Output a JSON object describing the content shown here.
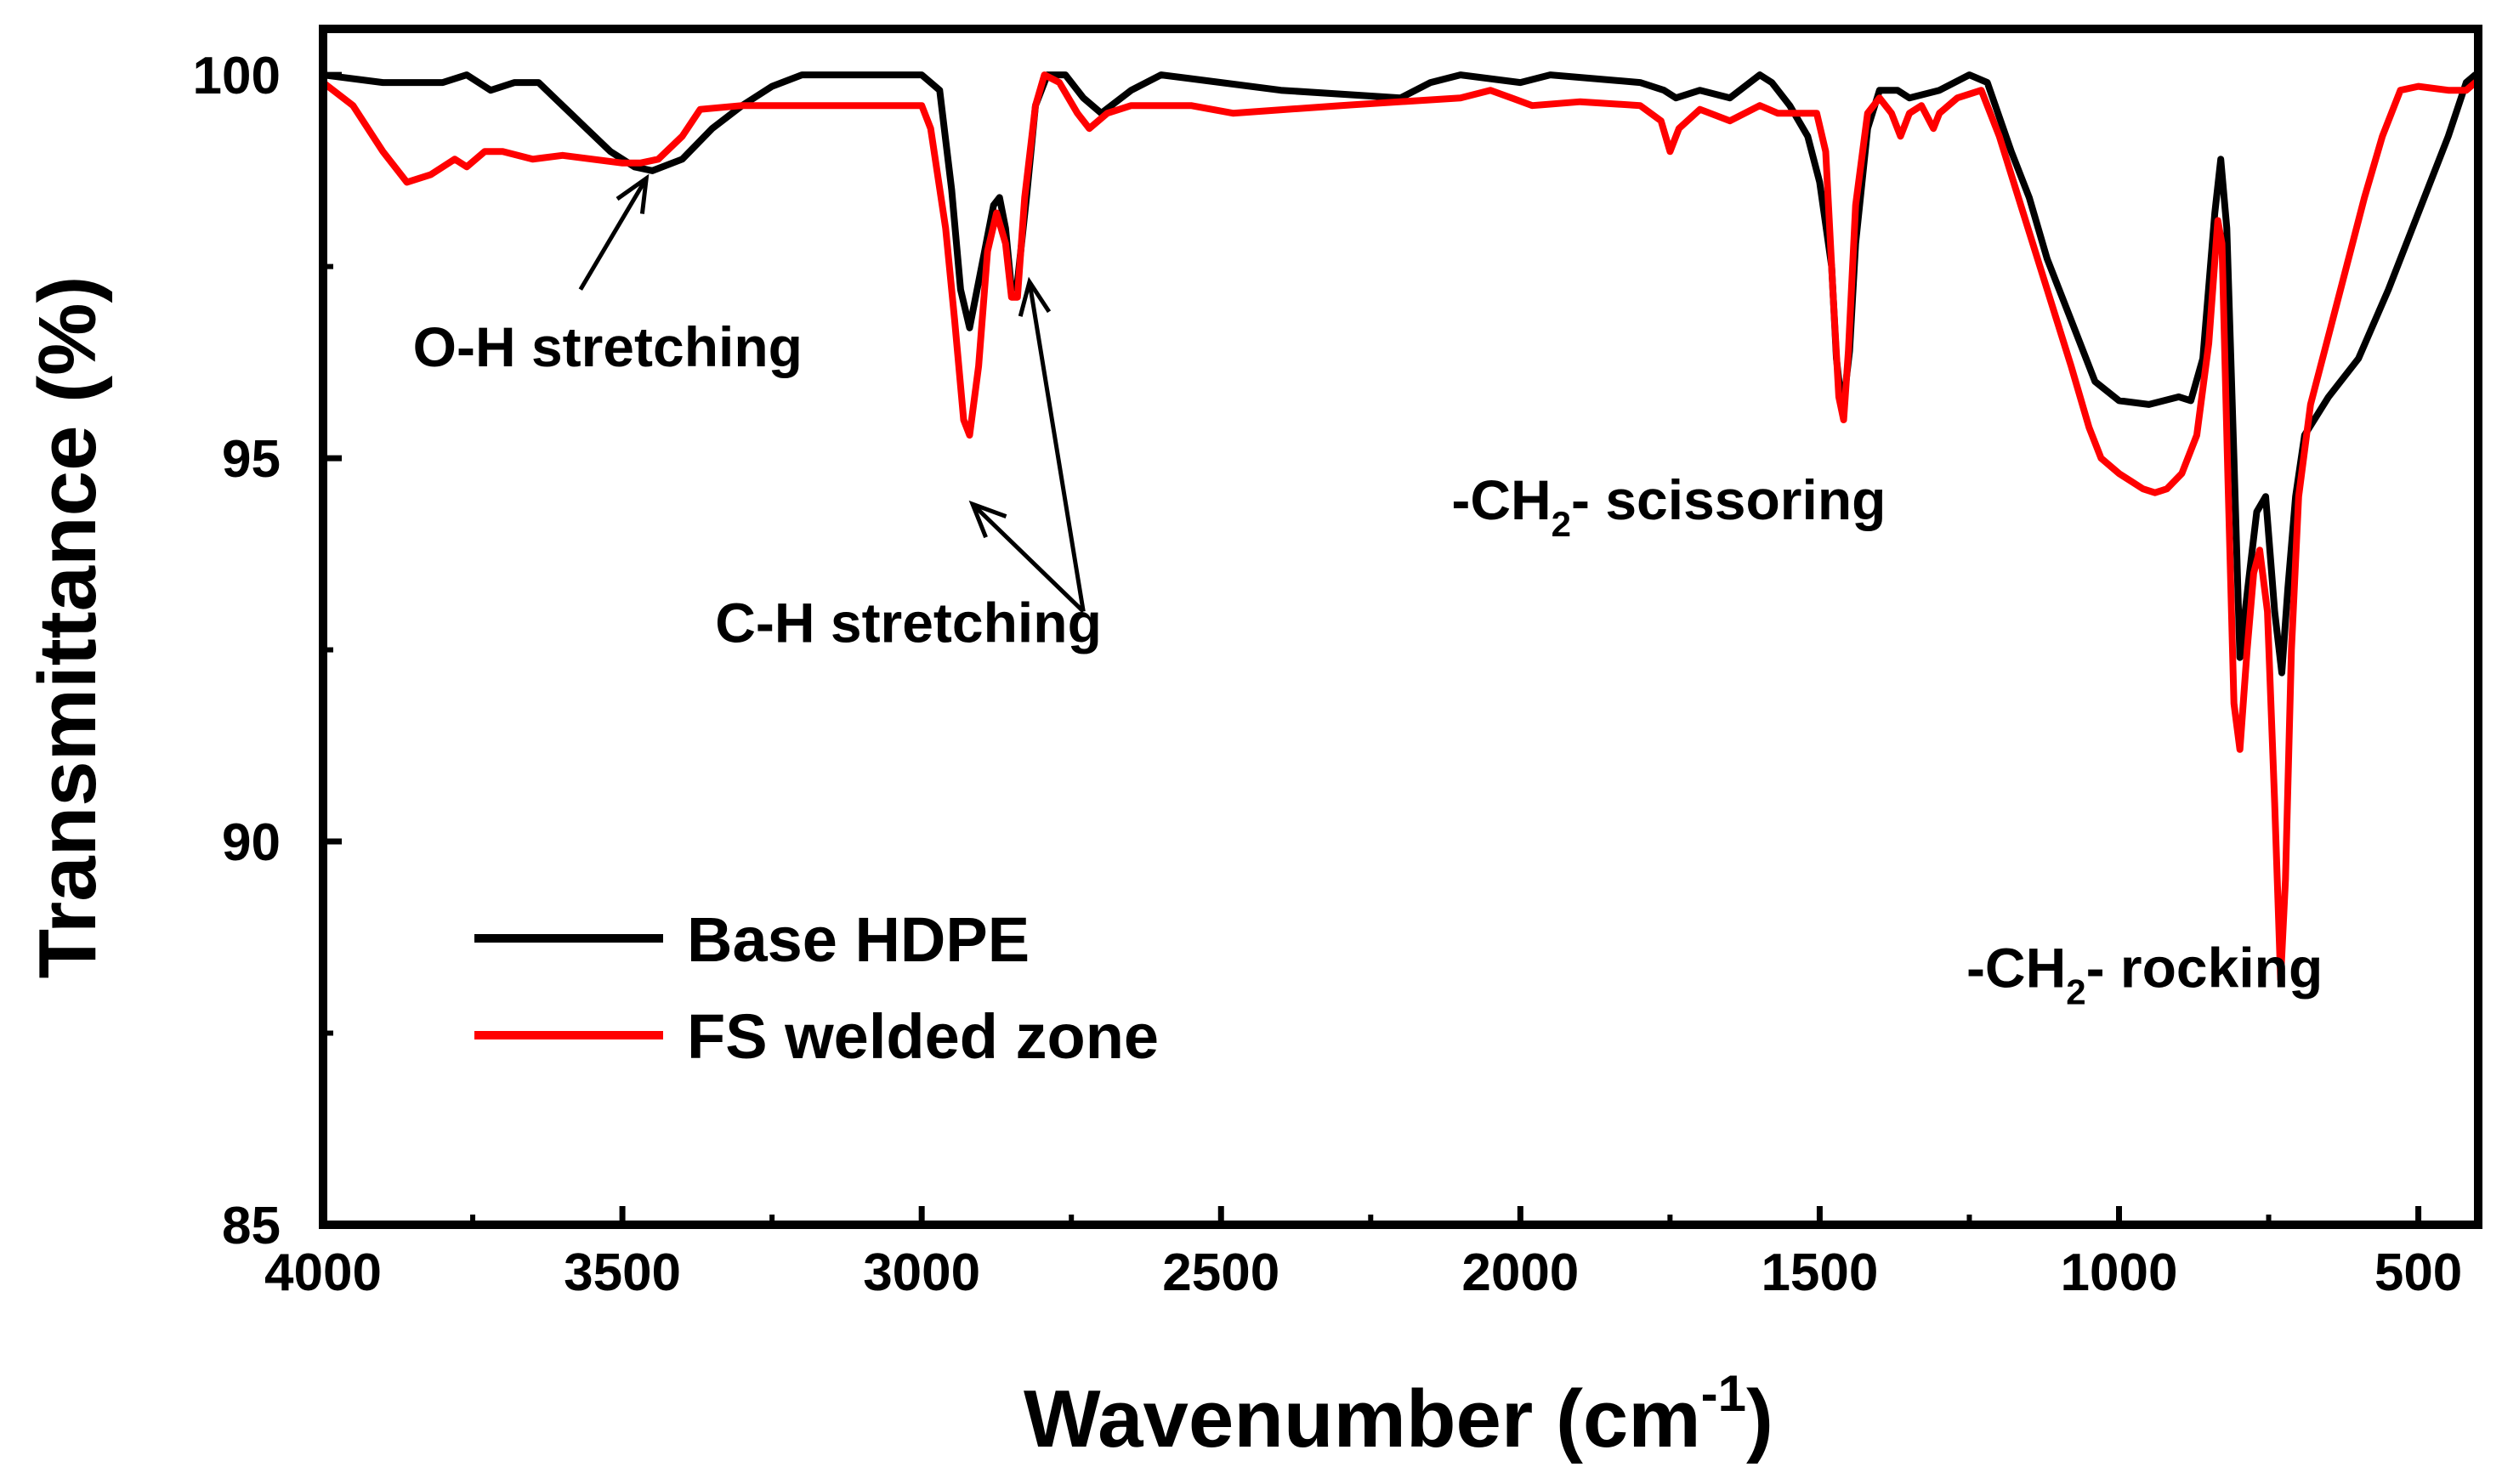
{
  "chart_data": {
    "type": "line",
    "title": "",
    "xlabel": "Wavenumber (cm",
    "xlabel_sup": "-1",
    "xlabel_close": ")",
    "ylabel": "Transmittance (%)",
    "xlim": [
      4000,
      400
    ],
    "ylim": [
      85,
      100.6
    ],
    "xticks": [
      4000,
      3500,
      3000,
      2500,
      2000,
      1500,
      1000,
      500
    ],
    "yticks": [
      85,
      90,
      95,
      100
    ],
    "grid": false,
    "legend_position": "lower-left",
    "series": [
      {
        "name": "Base HDPE",
        "color": "#000000",
        "points": [
          [
            4000,
            100
          ],
          [
            3900,
            99.9
          ],
          [
            3800,
            99.9
          ],
          [
            3760,
            100
          ],
          [
            3720,
            99.8
          ],
          [
            3680,
            99.9
          ],
          [
            3640,
            99.9
          ],
          [
            3600,
            99.6
          ],
          [
            3560,
            99.3
          ],
          [
            3520,
            99.0
          ],
          [
            3480,
            98.8
          ],
          [
            3450,
            98.75
          ],
          [
            3400,
            98.9
          ],
          [
            3350,
            99.3
          ],
          [
            3300,
            99.6
          ],
          [
            3250,
            99.85
          ],
          [
            3200,
            100
          ],
          [
            3100,
            100
          ],
          [
            3000,
            100
          ],
          [
            2970,
            99.8
          ],
          [
            2950,
            98.5
          ],
          [
            2935,
            97.2
          ],
          [
            2920,
            96.7
          ],
          [
            2905,
            97.3
          ],
          [
            2880,
            98.3
          ],
          [
            2870,
            98.4
          ],
          [
            2860,
            98.0
          ],
          [
            2850,
            97.2
          ],
          [
            2840,
            97.3
          ],
          [
            2825,
            98.4
          ],
          [
            2810,
            99.6
          ],
          [
            2790,
            100
          ],
          [
            2760,
            100
          ],
          [
            2730,
            99.7
          ],
          [
            2700,
            99.5
          ],
          [
            2650,
            99.8
          ],
          [
            2600,
            100
          ],
          [
            2500,
            99.9
          ],
          [
            2400,
            99.8
          ],
          [
            2200,
            99.7
          ],
          [
            2150,
            99.9
          ],
          [
            2100,
            100
          ],
          [
            2000,
            99.9
          ],
          [
            1950,
            100
          ],
          [
            1800,
            99.9
          ],
          [
            1760,
            99.8
          ],
          [
            1740,
            99.7
          ],
          [
            1700,
            99.8
          ],
          [
            1650,
            99.7
          ],
          [
            1600,
            100
          ],
          [
            1580,
            99.9
          ],
          [
            1550,
            99.6
          ],
          [
            1520,
            99.2
          ],
          [
            1500,
            98.6
          ],
          [
            1480,
            97.5
          ],
          [
            1472,
            96.3
          ],
          [
            1462,
            95.6
          ],
          [
            1450,
            96.4
          ],
          [
            1440,
            97.8
          ],
          [
            1420,
            99.3
          ],
          [
            1400,
            99.8
          ],
          [
            1370,
            99.8
          ],
          [
            1350,
            99.7
          ],
          [
            1300,
            99.8
          ],
          [
            1250,
            100
          ],
          [
            1220,
            99.9
          ],
          [
            1180,
            99.0
          ],
          [
            1150,
            98.4
          ],
          [
            1120,
            97.6
          ],
          [
            1080,
            96.8
          ],
          [
            1040,
            96.0
          ],
          [
            1000,
            95.75
          ],
          [
            950,
            95.7
          ],
          [
            900,
            95.8
          ],
          [
            880,
            95.75
          ],
          [
            860,
            96.3
          ],
          [
            840,
            98.2
          ],
          [
            830,
            98.9
          ],
          [
            820,
            98.0
          ],
          [
            808,
            95.0
          ],
          [
            798,
            92.4
          ],
          [
            785,
            93.3
          ],
          [
            770,
            94.3
          ],
          [
            755,
            94.5
          ],
          [
            740,
            93.0
          ],
          [
            728,
            92.2
          ],
          [
            718,
            93.3
          ],
          [
            705,
            94.5
          ],
          [
            690,
            95.3
          ],
          [
            650,
            95.8
          ],
          [
            600,
            96.3
          ],
          [
            550,
            97.2
          ],
          [
            500,
            98.2
          ],
          [
            450,
            99.2
          ],
          [
            420,
            99.9
          ],
          [
            405,
            100
          ]
        ]
      },
      {
        "name": "FS welded zone",
        "color": "#ff0000",
        "points": [
          [
            4000,
            99.9
          ],
          [
            3950,
            99.6
          ],
          [
            3900,
            99.0
          ],
          [
            3860,
            98.6
          ],
          [
            3820,
            98.7
          ],
          [
            3780,
            98.9
          ],
          [
            3760,
            98.8
          ],
          [
            3730,
            99.0
          ],
          [
            3700,
            99.0
          ],
          [
            3650,
            98.9
          ],
          [
            3600,
            98.95
          ],
          [
            3550,
            98.9
          ],
          [
            3500,
            98.85
          ],
          [
            3470,
            98.85
          ],
          [
            3440,
            98.9
          ],
          [
            3400,
            99.2
          ],
          [
            3370,
            99.55
          ],
          [
            3300,
            99.6
          ],
          [
            3200,
            99.6
          ],
          [
            3100,
            99.6
          ],
          [
            3000,
            99.6
          ],
          [
            2985,
            99.3
          ],
          [
            2960,
            98.0
          ],
          [
            2945,
            96.8
          ],
          [
            2930,
            95.5
          ],
          [
            2920,
            95.3
          ],
          [
            2905,
            96.2
          ],
          [
            2890,
            97.7
          ],
          [
            2875,
            98.2
          ],
          [
            2860,
            97.8
          ],
          [
            2850,
            97.1
          ],
          [
            2840,
            97.1
          ],
          [
            2828,
            98.4
          ],
          [
            2810,
            99.6
          ],
          [
            2795,
            100
          ],
          [
            2770,
            99.9
          ],
          [
            2740,
            99.5
          ],
          [
            2720,
            99.3
          ],
          [
            2690,
            99.5
          ],
          [
            2650,
            99.6
          ],
          [
            2550,
            99.6
          ],
          [
            2480,
            99.5
          ],
          [
            2300,
            99.6
          ],
          [
            2100,
            99.7
          ],
          [
            2050,
            99.8
          ],
          [
            1980,
            99.6
          ],
          [
            1900,
            99.65
          ],
          [
            1800,
            99.6
          ],
          [
            1765,
            99.4
          ],
          [
            1750,
            99.0
          ],
          [
            1735,
            99.3
          ],
          [
            1700,
            99.55
          ],
          [
            1650,
            99.4
          ],
          [
            1600,
            99.6
          ],
          [
            1570,
            99.5
          ],
          [
            1520,
            99.5
          ],
          [
            1505,
            99.5
          ],
          [
            1490,
            99.0
          ],
          [
            1478,
            97.2
          ],
          [
            1468,
            95.8
          ],
          [
            1460,
            95.5
          ],
          [
            1452,
            96.4
          ],
          [
            1440,
            98.3
          ],
          [
            1420,
            99.5
          ],
          [
            1400,
            99.7
          ],
          [
            1380,
            99.5
          ],
          [
            1365,
            99.2
          ],
          [
            1350,
            99.5
          ],
          [
            1330,
            99.6
          ],
          [
            1310,
            99.3
          ],
          [
            1300,
            99.5
          ],
          [
            1270,
            99.7
          ],
          [
            1230,
            99.8
          ],
          [
            1200,
            99.2
          ],
          [
            1160,
            98.2
          ],
          [
            1120,
            97.2
          ],
          [
            1080,
            96.2
          ],
          [
            1050,
            95.4
          ],
          [
            1030,
            95.0
          ],
          [
            1000,
            94.8
          ],
          [
            980,
            94.7
          ],
          [
            960,
            94.6
          ],
          [
            940,
            94.55
          ],
          [
            920,
            94.6
          ],
          [
            895,
            94.8
          ],
          [
            870,
            95.3
          ],
          [
            850,
            96.5
          ],
          [
            835,
            98.1
          ],
          [
            828,
            97.8
          ],
          [
            818,
            94.7
          ],
          [
            808,
            91.8
          ],
          [
            798,
            91.2
          ],
          [
            786,
            92.5
          ],
          [
            775,
            93.5
          ],
          [
            765,
            93.8
          ],
          [
            752,
            93.0
          ],
          [
            740,
            90.5
          ],
          [
            730,
            88.2
          ],
          [
            722,
            89.5
          ],
          [
            712,
            92.5
          ],
          [
            700,
            94.5
          ],
          [
            680,
            95.7
          ],
          [
            650,
            96.6
          ],
          [
            620,
            97.5
          ],
          [
            590,
            98.4
          ],
          [
            560,
            99.2
          ],
          [
            530,
            99.8
          ],
          [
            500,
            99.85
          ],
          [
            450,
            99.8
          ],
          [
            420,
            99.8
          ],
          [
            405,
            99.9
          ]
        ]
      }
    ],
    "annotations": [
      {
        "text": "O-H stretching",
        "x": 3850,
        "y": 96.2,
        "arrows": [
          {
            "from": [
              3570,
              97.2
            ],
            "to": [
              3460,
              98.65
            ]
          }
        ]
      },
      {
        "text": "C-H stretching",
        "x": 3345,
        "y": 92.6,
        "arrows": [
          {
            "from": [
              2730,
              93.0
            ],
            "to": [
              2915,
              94.4
            ]
          },
          {
            "from": [
              2730,
              93.0
            ],
            "to": [
              2820,
              97.3
            ]
          }
        ]
      },
      {
        "text": "-CH",
        "sub": "2",
        "rest": "- scissoring",
        "x": 2115,
        "y": 94.2
      },
      {
        "text": "-CH",
        "sub": "2",
        "rest": "- rocking",
        "x": 1255,
        "y": 88.1
      }
    ]
  }
}
